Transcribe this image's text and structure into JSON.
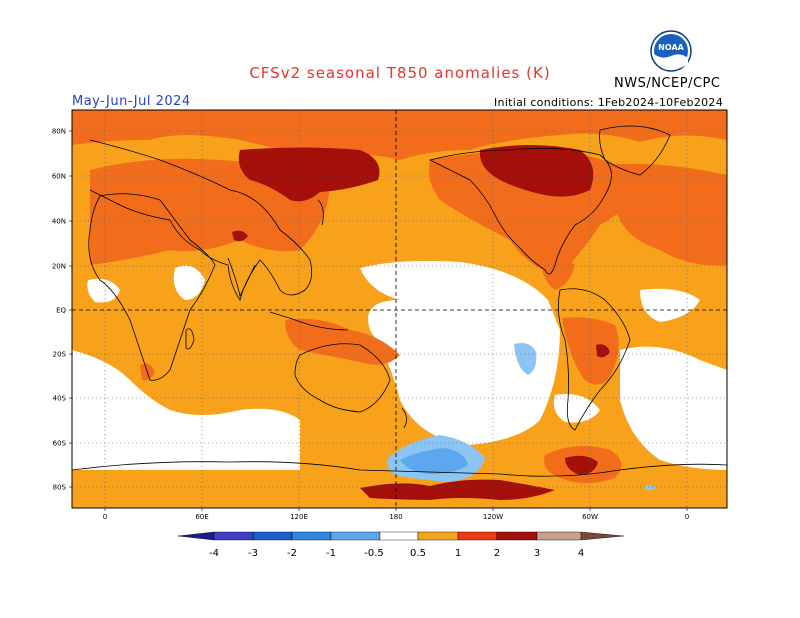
{
  "header": {
    "title": "CFSv2 seasonal T850 anomalies (K)",
    "agency": "NWS/NCEP/CPC",
    "logo_text": "NOAA",
    "period": "May-Jun-Jul 2024",
    "initial_conditions": "Initial conditions: 1Feb2024-10Feb2024"
  },
  "axes": {
    "lat_labels": [
      "80N",
      "60N",
      "40N",
      "20N",
      "EQ",
      "20S",
      "40S",
      "60S",
      "80S"
    ],
    "lon_labels": [
      "0",
      "60E",
      "120E",
      "180",
      "120W",
      "60W",
      "0"
    ]
  },
  "colorbar": {
    "labels": [
      "-4",
      "-3",
      "-2",
      "-1",
      "-0.5",
      "0.5",
      "1",
      "2",
      "3",
      "4"
    ],
    "colors": [
      "#1f1a8c",
      "#3f3fc8",
      "#1c5fcc",
      "#2c86e0",
      "#5ca8ee",
      "#8cc4f4",
      "#ffffff",
      "#f5a31c",
      "#f5741c",
      "#ee3a12",
      "#a50f0a",
      "#6e0b05",
      "#c8a090",
      "#7a4a3c"
    ]
  },
  "map_colors": {
    "ocean_base": "#f8a21b",
    "neutral": "#ffffff",
    "warm1": "#f5a31c",
    "warm2": "#f26d1b",
    "warm3": "#ee3a12",
    "warm4": "#a50f0a",
    "cool1": "#8cc4f4",
    "cool2": "#5ca8ee",
    "cool3": "#2c86e0"
  }
}
